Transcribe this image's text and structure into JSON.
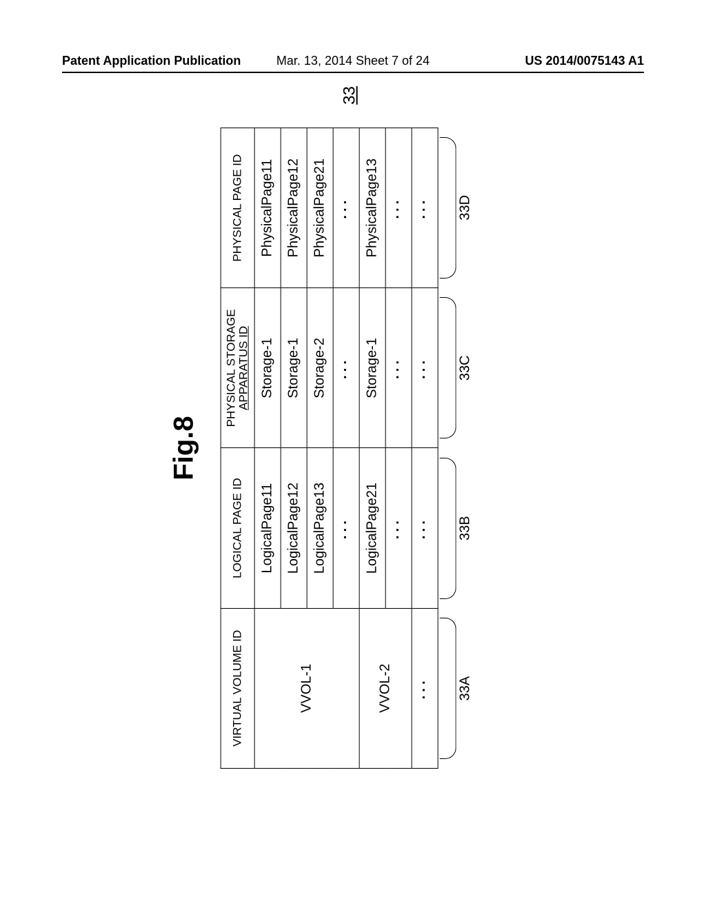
{
  "header": {
    "left": "Patent Application Publication",
    "center": "Mar. 13, 2014  Sheet 7 of 24",
    "right": "US 2014/0075143 A1"
  },
  "figure": {
    "label": "Fig.8",
    "sideref": "33"
  },
  "table": {
    "col_headers": {
      "c1": "VIRTUAL VOLUME ID",
      "c2": "LOGICAL PAGE ID",
      "c3_line1": "PHYSICAL STORAGE",
      "c3_line2": "APPARATUS ID",
      "c4": "PHYSICAL PAGE ID"
    },
    "groups": [
      {
        "vvol": "VVOL-1",
        "rows": [
          {
            "logical": "LogicalPage11",
            "storage": "Storage-1",
            "physical": "PhysicalPage11"
          },
          {
            "logical": "LogicalPage12",
            "storage": "Storage-1",
            "physical": "PhysicalPage12"
          },
          {
            "logical": "LogicalPage13",
            "storage": "Storage-2",
            "physical": "PhysicalPage21"
          },
          {
            "logical": "···",
            "storage": "···",
            "physical": "···",
            "dots": true
          }
        ]
      },
      {
        "vvol": "VVOL-2",
        "rows": [
          {
            "logical": "LogicalPage21",
            "storage": "Storage-1",
            "physical": "PhysicalPage13"
          },
          {
            "logical": "···",
            "storage": "···",
            "physical": "···",
            "dots": true
          }
        ]
      },
      {
        "vvol": "···",
        "vvol_dots": true,
        "rows": [
          {
            "logical": "···",
            "storage": "···",
            "physical": "···",
            "dots": true
          }
        ]
      }
    ],
    "braces": {
      "b1": "33A",
      "b2": "33B",
      "b3": "33C",
      "b4": "33D"
    }
  }
}
